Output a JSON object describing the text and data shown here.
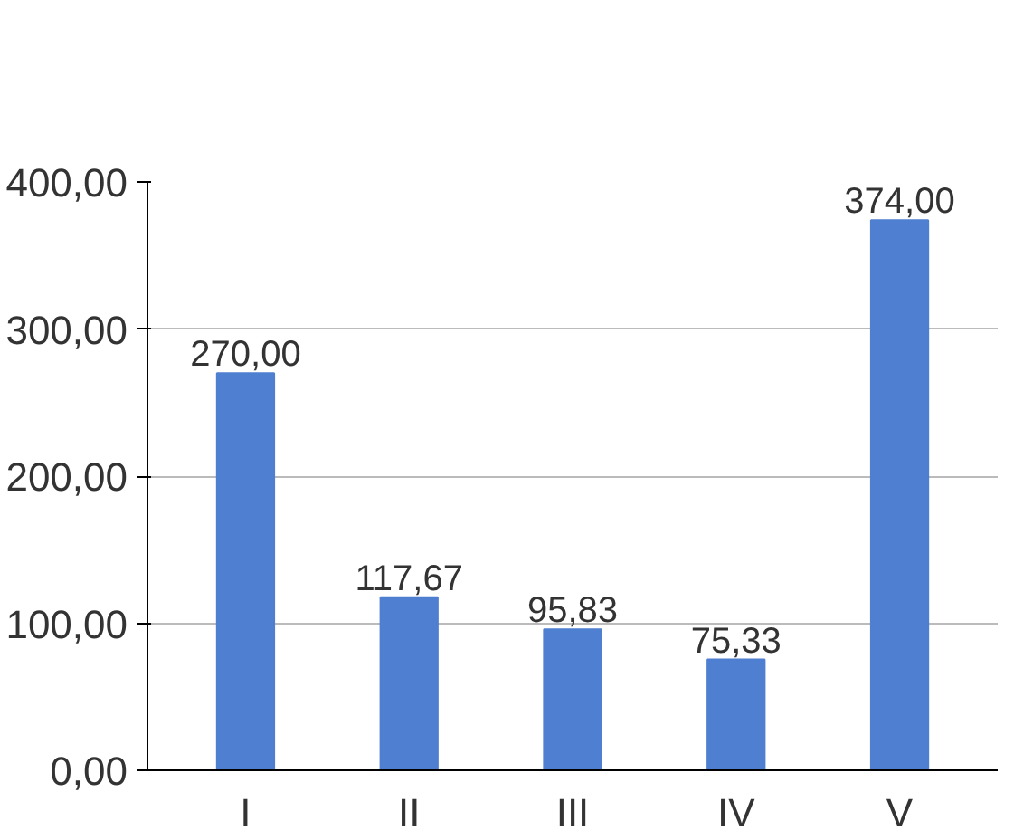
{
  "chart_data": {
    "type": "bar",
    "categories": [
      "I",
      "II",
      "III",
      "IV",
      "V"
    ],
    "values": [
      270,
      117.67,
      95.83,
      75.33,
      374
    ],
    "value_labels": [
      "270,00",
      "117,67",
      "95,83",
      "75,33",
      "374,00"
    ],
    "color": "#4f7fd0",
    "ylim": [
      0,
      400
    ],
    "yticks": [
      {
        "value": 0,
        "label": "0,00"
      },
      {
        "value": 100,
        "label": "100,00"
      },
      {
        "value": 200,
        "label": "200,00"
      },
      {
        "value": 300,
        "label": "300,00"
      },
      {
        "value": 400,
        "label": "400,00"
      }
    ],
    "grid": "y"
  }
}
